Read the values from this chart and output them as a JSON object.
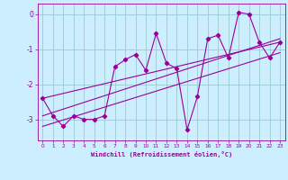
{
  "title": "",
  "xlabel": "Windchill (Refroidissement éolien,°C)",
  "background_color": "#cceeff",
  "line_color": "#990099",
  "grid_color": "#99cccc",
  "x_ticks": [
    0,
    1,
    2,
    3,
    4,
    5,
    6,
    7,
    8,
    9,
    10,
    11,
    12,
    13,
    14,
    15,
    16,
    17,
    18,
    19,
    20,
    21,
    22,
    23
  ],
  "y_ticks": [
    0,
    -1,
    -2,
    -3
  ],
  "ylim": [
    -3.6,
    0.3
  ],
  "xlim": [
    -0.5,
    23.5
  ],
  "zigzag_x": [
    0,
    1,
    2,
    3,
    4,
    5,
    6,
    7,
    8,
    9,
    10,
    11,
    12,
    13,
    14,
    15,
    16,
    17,
    18,
    19,
    20,
    21,
    22,
    23
  ],
  "zigzag_y": [
    -2.4,
    -2.9,
    -3.2,
    -2.9,
    -3.0,
    -3.0,
    -2.9,
    -1.5,
    -1.3,
    -1.15,
    -1.6,
    -0.55,
    -1.4,
    -1.55,
    -3.3,
    -2.35,
    -0.7,
    -0.6,
    -1.25,
    0.05,
    0.0,
    -0.8,
    -1.25,
    -0.8
  ],
  "line1_x": [
    0,
    23
  ],
  "line1_y": [
    -2.4,
    -0.8
  ],
  "line2_x": [
    0,
    23
  ],
  "line2_y": [
    -2.9,
    -0.7
  ],
  "line3_x": [
    0,
    23
  ],
  "line3_y": [
    -3.2,
    -1.1
  ]
}
